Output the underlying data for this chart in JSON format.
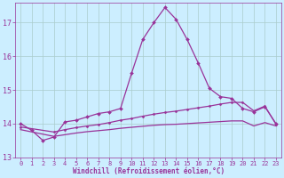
{
  "hours": [
    0,
    1,
    2,
    3,
    4,
    5,
    6,
    7,
    8,
    9,
    10,
    11,
    12,
    13,
    14,
    15,
    16,
    17,
    18,
    19,
    20,
    21,
    22,
    23
  ],
  "line1": [
    14.0,
    13.8,
    13.5,
    13.6,
    14.05,
    14.1,
    14.2,
    14.3,
    14.35,
    14.45,
    15.5,
    16.5,
    17.0,
    17.45,
    17.1,
    16.5,
    15.8,
    15.05,
    14.8,
    14.75,
    14.45,
    14.35,
    14.5,
    14.0
  ],
  "line2": [
    13.9,
    null,
    null,
    13.75,
    13.82,
    13.88,
    13.93,
    13.97,
    14.03,
    14.1,
    14.15,
    14.22,
    14.28,
    14.33,
    14.37,
    14.42,
    14.47,
    14.52,
    14.58,
    14.63,
    14.63,
    14.38,
    14.52,
    13.98
  ],
  "line3": [
    13.82,
    null,
    null,
    13.62,
    13.67,
    13.72,
    13.76,
    13.79,
    13.82,
    13.86,
    13.89,
    13.92,
    13.95,
    13.97,
    13.98,
    14.0,
    14.02,
    14.04,
    14.06,
    14.08,
    14.08,
    13.93,
    14.03,
    13.93
  ],
  "color": "#993399",
  "bg_color": "#cceeff",
  "grid_color": "#aacccc",
  "xlabel": "Windchill (Refroidissement éolien,°C)",
  "ylim": [
    13.0,
    17.6
  ],
  "xlim": [
    -0.5,
    23.5
  ],
  "yticks": [
    13,
    14,
    15,
    16,
    17
  ],
  "xticks": [
    0,
    1,
    2,
    3,
    4,
    5,
    6,
    7,
    8,
    9,
    10,
    11,
    12,
    13,
    14,
    15,
    16,
    17,
    18,
    19,
    20,
    21,
    22,
    23
  ]
}
